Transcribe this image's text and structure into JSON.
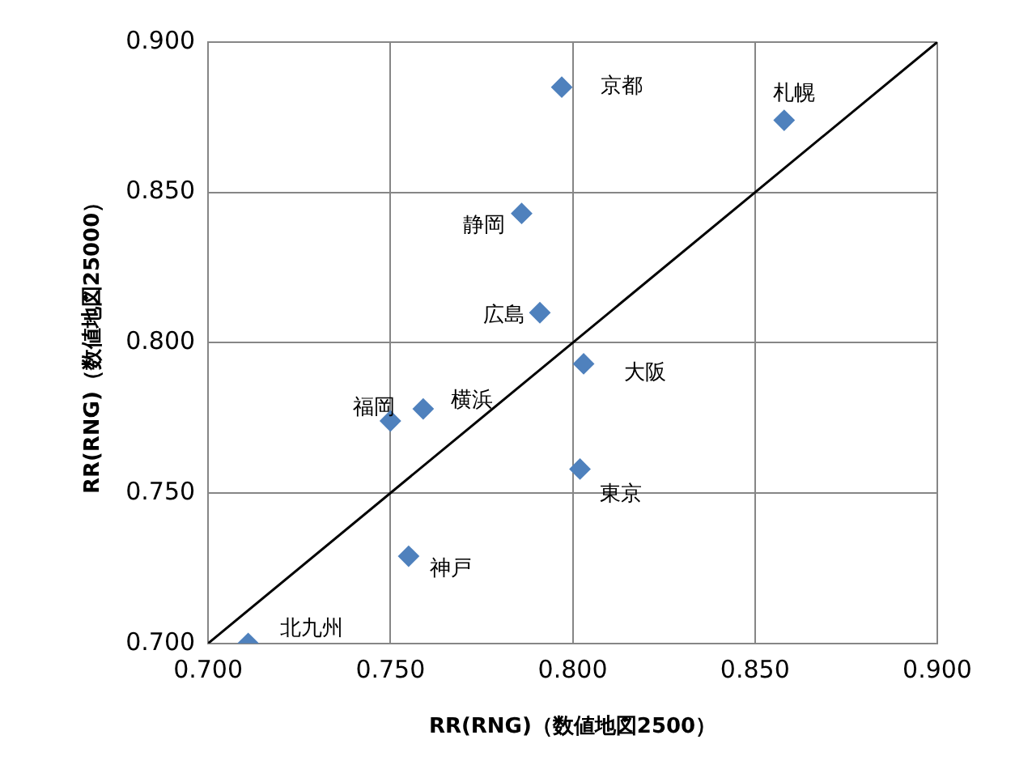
{
  "chart_data": {
    "type": "scatter",
    "xlabel": "RR(RNG)（数値地図2500）",
    "ylabel": "RR(RNG)（数値地図25000）",
    "xlim": [
      0.7,
      0.9
    ],
    "xticks": [
      {
        "value": 0.7,
        "label": "0.700"
      },
      {
        "value": 0.75,
        "label": "0.750"
      },
      {
        "value": 0.8,
        "label": "0.800"
      },
      {
        "value": 0.85,
        "label": "0.850"
      },
      {
        "value": 0.9,
        "label": "0.900"
      }
    ],
    "ylim": [
      0.7,
      0.9
    ],
    "yticks": [
      {
        "value": 0.7,
        "label": "0.700"
      },
      {
        "value": 0.75,
        "label": "0.750"
      },
      {
        "value": 0.8,
        "label": "0.800"
      },
      {
        "value": 0.85,
        "label": "0.850"
      },
      {
        "value": 0.9,
        "label": "0.900"
      }
    ],
    "grid": true,
    "legend": false,
    "marker": "diamond",
    "series": [
      {
        "color": "#4f81bd",
        "x": [
          0.797,
          0.858,
          0.786,
          0.791,
          0.803,
          0.759,
          0.75,
          0.802,
          0.755,
          0.711
        ],
        "values": [
          0.885,
          0.874,
          0.843,
          0.81,
          0.793,
          0.778,
          0.774,
          0.758,
          0.729,
          0.7
        ],
        "value_labels": [
          "京都",
          "札幌",
          "静岡",
          "広島",
          "大阪",
          "横浜",
          "福岡",
          "東京",
          "神戸",
          "北九州"
        ]
      },
      {
        "type": "line",
        "color": "#000000",
        "marker": "none",
        "x": [
          0.7,
          0.9
        ],
        "values": [
          0.7,
          0.9
        ]
      }
    ]
  }
}
